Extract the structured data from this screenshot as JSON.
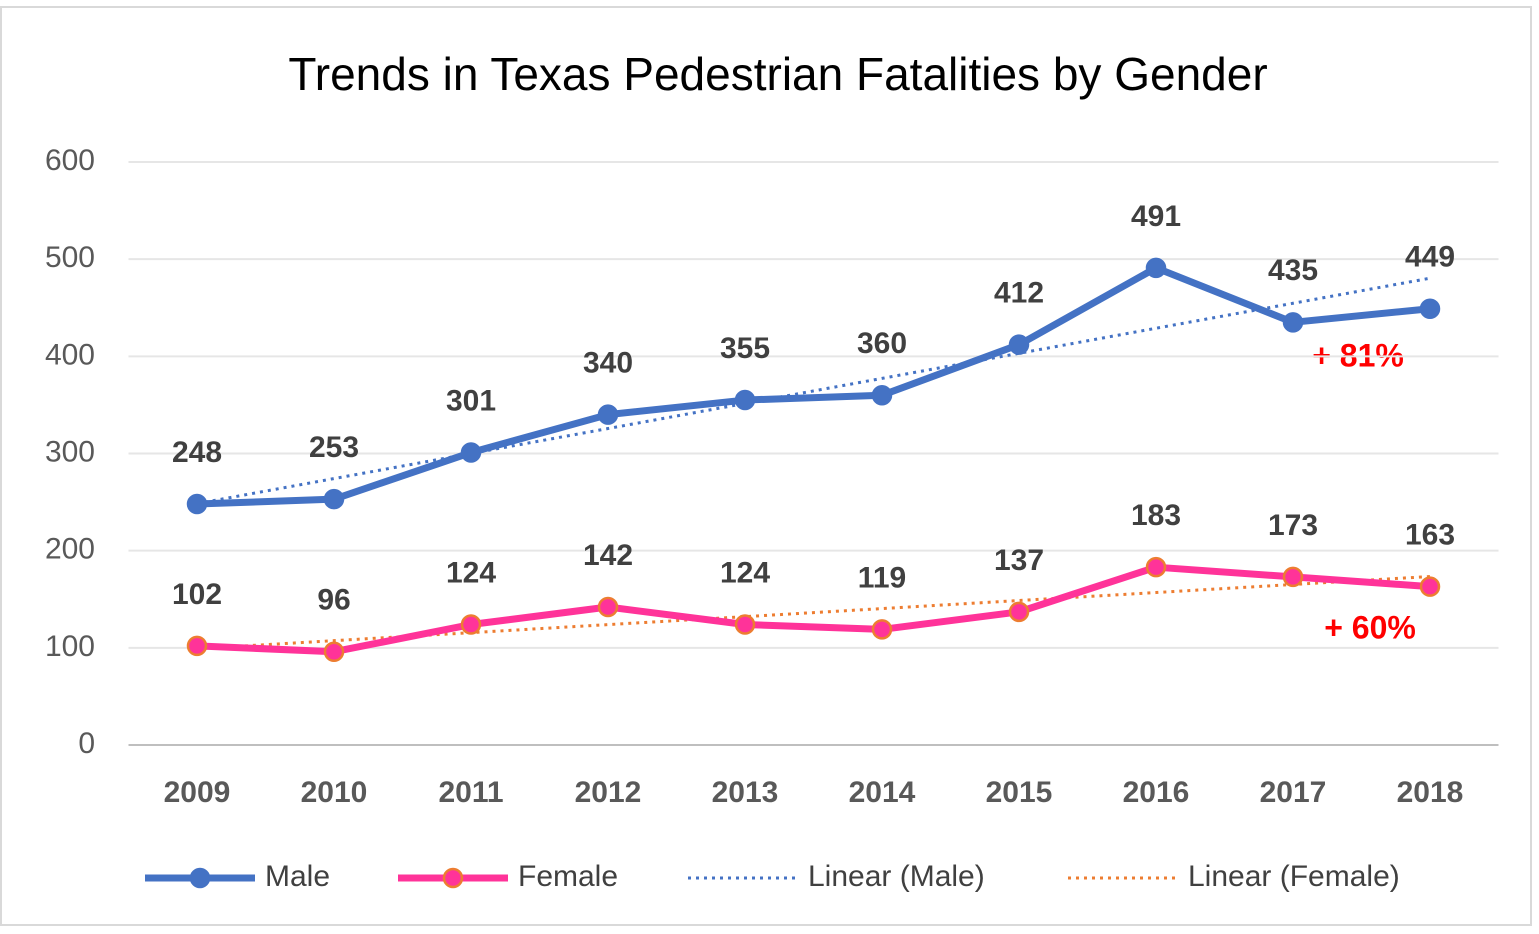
{
  "chart_data": {
    "type": "line",
    "title": "Trends in Texas Pedestrian Fatalities by Gender",
    "categories": [
      "2009",
      "2010",
      "2011",
      "2012",
      "2013",
      "2014",
      "2015",
      "2016",
      "2017",
      "2018"
    ],
    "series": [
      {
        "name": "Male",
        "color": "#4472c4",
        "marker_edge": "#4472c4",
        "values": [
          248,
          253,
          301,
          340,
          355,
          360,
          412,
          491,
          435,
          449
        ],
        "data_labels": true
      },
      {
        "name": "Female",
        "color": "#ff3399",
        "marker_edge": "#ed7d31",
        "values": [
          102,
          96,
          124,
          142,
          124,
          119,
          137,
          183,
          173,
          163
        ],
        "data_labels": true
      },
      {
        "name": "Linear (Male)",
        "color": "#4472c4",
        "dash": "dotted",
        "values": [
          248.4,
          274.2,
          300.0,
          325.7,
          351.5,
          377.3,
          403.1,
          428.9,
          454.6,
          480.4
        ]
      },
      {
        "name": "Linear (Female)",
        "color": "#ed7d31",
        "dash": "dotted",
        "values": [
          99.1,
          107.4,
          115.6,
          123.9,
          132.1,
          140.4,
          148.7,
          156.9,
          165.2,
          173.4
        ]
      }
    ],
    "annotations": [
      {
        "text": "+ 81%"
      },
      {
        "text": "+ 60%"
      }
    ],
    "ylim": [
      0,
      600
    ],
    "yticks": [
      0,
      100,
      200,
      300,
      400,
      500,
      600
    ],
    "grid": true,
    "legend": "bottom"
  }
}
